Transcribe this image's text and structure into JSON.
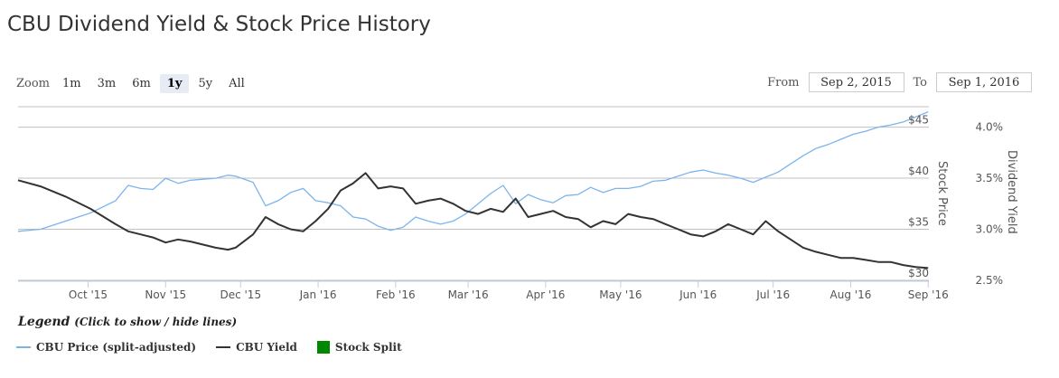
{
  "title": "CBU Dividend Yield & Stock Price History",
  "zoom": {
    "label": "Zoom",
    "options": [
      "1m",
      "3m",
      "6m",
      "1y",
      "5y",
      "All"
    ],
    "active": "1y"
  },
  "range": {
    "from_label": "From",
    "from_value": "Sep 2, 2015",
    "to_label": "To",
    "to_value": "Sep 1, 2016"
  },
  "legend": {
    "title": "Legend",
    "hint": "(Click to show / hide lines)",
    "items": [
      {
        "label": "CBU Price (split-adjusted)",
        "color": "#7cb5ec",
        "kind": "line"
      },
      {
        "label": "CBU Yield",
        "color": "#333333",
        "kind": "line"
      },
      {
        "label": "Stock Split",
        "color": "#008800",
        "kind": "box"
      }
    ]
  },
  "chart_data": {
    "type": "line",
    "x_tick_labels": [
      "Oct '15",
      "Nov '15",
      "Dec '15",
      "Jan '16",
      "Feb '16",
      "Mar '16",
      "Apr '16",
      "May '16",
      "Jun '16",
      "Jul '16",
      "Aug '16",
      "Sep '16"
    ],
    "x_tick_positions": [
      29,
      60,
      90,
      121,
      152,
      181,
      212,
      242,
      273,
      303,
      334,
      365
    ],
    "x_range": [
      1,
      366
    ],
    "y_left": {
      "label": "Stock Price",
      "ticks": [
        "$30",
        "$35",
        "$40",
        "$45"
      ],
      "tick_values": [
        30,
        35,
        40,
        45
      ],
      "range": [
        30,
        47
      ]
    },
    "y_right": {
      "label": "Dividend Yield",
      "ticks": [
        "2.5%",
        "3.0%",
        "3.5%",
        "4.0%"
      ],
      "tick_values": [
        2.5,
        3.0,
        3.5,
        4.0
      ],
      "range": [
        2.5,
        4.2
      ]
    },
    "series": [
      {
        "name": "CBU Price (split-adjusted)",
        "axis": "left",
        "color": "#7cb5ec",
        "x": [
          1,
          10,
          20,
          30,
          40,
          45,
          50,
          55,
          60,
          65,
          70,
          75,
          80,
          85,
          88,
          95,
          100,
          105,
          110,
          115,
          120,
          125,
          130,
          135,
          140,
          145,
          150,
          155,
          160,
          165,
          170,
          175,
          180,
          185,
          190,
          195,
          200,
          205,
          210,
          215,
          220,
          225,
          230,
          235,
          240,
          245,
          250,
          255,
          260,
          265,
          270,
          275,
          280,
          285,
          290,
          295,
          300,
          305,
          310,
          315,
          320,
          325,
          330,
          335,
          340,
          345,
          350,
          355,
          360,
          365
        ],
        "y": [
          34.8,
          35.0,
          35.8,
          36.6,
          37.8,
          39.3,
          39.0,
          38.9,
          40.0,
          39.5,
          39.8,
          39.9,
          40.0,
          40.3,
          40.2,
          39.6,
          37.3,
          37.8,
          38.6,
          39.0,
          37.8,
          37.6,
          37.3,
          36.2,
          36.0,
          35.3,
          34.9,
          35.2,
          36.2,
          35.8,
          35.5,
          35.8,
          36.5,
          37.5,
          38.5,
          39.3,
          37.5,
          38.4,
          37.9,
          37.6,
          38.3,
          38.4,
          39.1,
          38.6,
          39.0,
          39.0,
          39.2,
          39.7,
          39.8,
          40.2,
          40.6,
          40.8,
          40.5,
          40.3,
          40.0,
          39.6,
          40.1,
          40.6,
          41.4,
          42.2,
          42.9,
          43.3,
          43.8,
          44.3,
          44.6,
          45.0,
          45.2,
          45.5,
          46.0,
          46.5
        ]
      },
      {
        "name": "CBU Yield",
        "axis": "right",
        "color": "#333333",
        "x": [
          1,
          10,
          20,
          30,
          40,
          45,
          50,
          55,
          60,
          65,
          70,
          75,
          80,
          85,
          88,
          95,
          100,
          105,
          110,
          115,
          120,
          125,
          130,
          135,
          140,
          145,
          150,
          155,
          160,
          165,
          170,
          175,
          180,
          185,
          190,
          195,
          200,
          205,
          210,
          215,
          220,
          225,
          230,
          235,
          240,
          245,
          250,
          255,
          260,
          265,
          270,
          275,
          280,
          285,
          290,
          295,
          300,
          305,
          310,
          315,
          320,
          325,
          330,
          335,
          340,
          345,
          350,
          355,
          360,
          365
        ],
        "y": [
          3.48,
          3.42,
          3.32,
          3.2,
          3.05,
          2.98,
          2.95,
          2.92,
          2.87,
          2.9,
          2.88,
          2.85,
          2.82,
          2.8,
          2.82,
          2.95,
          3.12,
          3.05,
          3.0,
          2.98,
          3.08,
          3.2,
          3.38,
          3.45,
          3.55,
          3.4,
          3.42,
          3.4,
          3.25,
          3.28,
          3.3,
          3.25,
          3.18,
          3.15,
          3.2,
          3.17,
          3.3,
          3.12,
          3.15,
          3.18,
          3.12,
          3.1,
          3.02,
          3.08,
          3.05,
          3.15,
          3.12,
          3.1,
          3.05,
          3.0,
          2.95,
          2.93,
          2.98,
          3.05,
          3.0,
          2.95,
          3.08,
          2.98,
          2.9,
          2.82,
          2.78,
          2.75,
          2.72,
          2.72,
          2.7,
          2.68,
          2.68,
          2.65,
          2.63,
          2.62
        ]
      }
    ],
    "grid": true
  }
}
